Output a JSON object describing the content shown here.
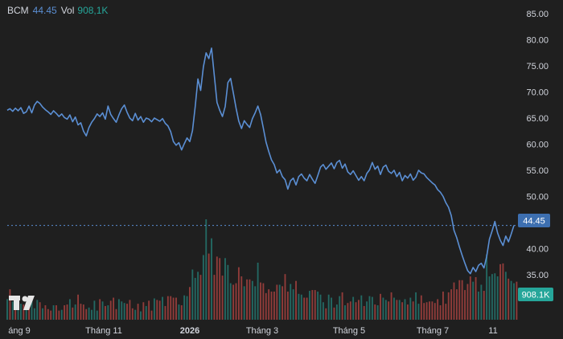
{
  "header": {
    "symbol": "BCM",
    "price": "44.45",
    "vol_label": "Vol",
    "volume": "908,1K"
  },
  "colors": {
    "background": "#1f1f1f",
    "line": "#5b8fd4",
    "up_volume": "#26a69a",
    "down_volume": "#ef5350",
    "price_badge": "#3d6fb0",
    "volume_badge": "#26a69a",
    "grid": "#2a2a2a"
  },
  "chart_data": {
    "type": "line",
    "symbol": "BCM",
    "y_ticks": [
      "85.00",
      "80.00",
      "75.00",
      "70.00",
      "65.00",
      "60.00",
      "55.00",
      "50.00",
      "45.00",
      "40.00",
      "35.00"
    ],
    "ylim": [
      35,
      85
    ],
    "x_tick_labels": [
      "áng 9",
      "Tháng 11",
      "2026",
      "Tháng 3",
      "Tháng 5",
      "Tháng 7",
      "11"
    ],
    "price_marker": "44.45",
    "volume_marker": "908.1K",
    "series": [
      {
        "values": [
          66.5,
          66.8,
          66.3,
          66.9,
          66.4,
          67.0,
          65.9,
          66.2,
          67.3,
          66.0,
          67.5,
          68.2,
          67.8,
          67.1,
          66.6,
          66.2,
          65.7,
          66.4,
          65.9,
          65.3,
          65.8,
          65.1,
          64.8,
          65.6,
          64.3,
          65.2,
          63.7,
          64.1,
          62.5,
          61.6,
          63.2,
          64.2,
          64.9,
          65.8,
          65.3,
          66.0,
          64.8,
          67.3,
          65.7,
          64.9,
          64.2,
          65.6,
          66.8,
          67.5,
          66.1,
          65.0,
          64.5,
          65.9,
          64.6,
          65.3,
          64.2,
          65.0,
          64.8,
          64.3,
          65.0,
          64.7,
          64.4,
          64.9,
          64.0,
          63.5,
          62.4,
          60.5,
          59.8,
          60.3,
          58.9,
          60.1,
          61.2,
          60.5,
          62.6,
          67.2,
          72.5,
          70.3,
          74.8,
          77.5,
          76.4,
          78.4,
          73.2,
          68.0,
          66.5,
          65.3,
          67.2,
          71.8,
          72.6,
          69.8,
          66.9,
          64.4,
          63.0,
          64.5,
          63.8,
          63.2,
          64.9,
          66.0,
          67.3,
          65.7,
          63.1,
          60.4,
          58.6,
          57.0,
          56.1,
          54.5,
          55.1,
          53.8,
          53.2,
          51.4,
          53.0,
          53.5,
          52.2,
          53.8,
          54.3,
          53.5,
          53.0,
          54.2,
          53.3,
          52.5,
          54.0,
          55.6,
          56.1,
          55.2,
          55.8,
          56.4,
          55.3,
          56.5,
          56.9,
          55.4,
          56.2,
          54.7,
          54.2,
          54.9,
          54.0,
          53.1,
          53.8,
          53.0,
          54.4,
          55.1,
          56.5,
          55.2,
          55.8,
          54.2,
          55.6,
          56.0,
          54.8,
          54.4,
          55.0,
          53.8,
          54.6,
          53.0,
          54.0,
          53.5,
          54.3,
          53.1,
          53.7,
          55.0,
          54.5,
          54.3,
          53.6,
          53.1,
          52.6,
          52.2,
          51.3,
          50.8,
          50.0,
          48.8,
          47.9,
          46.3,
          43.5,
          42.1,
          40.3,
          38.7,
          37.2,
          35.8,
          35.2,
          36.4,
          35.6,
          36.8,
          37.2,
          36.3,
          38.5,
          41.8,
          43.4,
          45.2,
          43.0,
          41.6,
          40.6,
          42.4,
          41.3,
          42.8,
          44.45
        ]
      }
    ],
    "volume_series": {
      "values": [
        0.27,
        0.4,
        0.24,
        0.31,
        0.28,
        0.21,
        0.2,
        0.18,
        0.22,
        0.26,
        0.15,
        0.26,
        0.23,
        0.15,
        0.19,
        0.14,
        0.12,
        0.19,
        0.19,
        0.12,
        0.13,
        0.19,
        0.2,
        0.27,
        0.16,
        0.2,
        0.33,
        0.21,
        0.2,
        0.14,
        0.16,
        0.13,
        0.25,
        0.12,
        0.27,
        0.24,
        0.18,
        0.19,
        0.25,
        0.29,
        0.14,
        0.27,
        0.24,
        0.22,
        0.21,
        0.26,
        0.15,
        0.13,
        0.21,
        0.11,
        0.23,
        0.18,
        0.25,
        0.12,
        0.28,
        0.26,
        0.25,
        0.3,
        0.18,
        0.31,
        0.31,
        0.29,
        0.29,
        0.2,
        0.19,
        0.32,
        0.31,
        0.43,
        0.66,
        0.55,
        0.63,
        0.59,
        0.85,
        1.32,
        0.87,
        1.07,
        0.59,
        0.83,
        0.81,
        0.58,
        0.81,
        0.72,
        0.48,
        0.46,
        0.48,
        0.69,
        0.57,
        0.44,
        0.53,
        0.53,
        0.51,
        0.44,
        0.75,
        0.49,
        0.48,
        0.35,
        0.4,
        0.37,
        0.37,
        0.46,
        0.46,
        0.44,
        0.6,
        0.37,
        0.47,
        0.4,
        0.51,
        0.34,
        0.33,
        0.29,
        0.29,
        0.38,
        0.39,
        0.39,
        0.37,
        0.33,
        0.23,
        0.15,
        0.33,
        0.29,
        0.16,
        0.2,
        0.31,
        0.36,
        0.19,
        0.22,
        0.24,
        0.3,
        0.23,
        0.26,
        0.32,
        0.18,
        0.24,
        0.31,
        0.3,
        0.2,
        0.19,
        0.34,
        0.29,
        0.26,
        0.24,
        0.36,
        0.29,
        0.26,
        0.26,
        0.23,
        0.27,
        0.2,
        0.29,
        0.24,
        0.36,
        0.21,
        0.32,
        0.22,
        0.23,
        0.24,
        0.24,
        0.22,
        0.27,
        0.19,
        0.37,
        0.21,
        0.36,
        0.4,
        0.49,
        0.4,
        0.52,
        0.52,
        0.39,
        0.47,
        0.57,
        0.5,
        0.56,
        0.37,
        0.46,
        0.38,
        0.86,
        0.57,
        0.6,
        0.61,
        0.57,
        0.73,
        0.74,
        0.63,
        0.54,
        0.51,
        0.48,
        0.5
      ],
      "up": [
        1,
        0,
        1,
        0,
        1,
        1,
        0,
        1,
        0,
        1,
        1,
        1,
        0,
        1,
        0,
        0,
        0,
        1,
        0,
        0,
        1,
        0,
        0,
        1,
        0,
        1,
        0,
        0,
        0,
        0,
        1,
        1,
        1,
        1,
        0,
        1,
        0,
        1,
        0,
        0,
        0,
        1,
        1,
        1,
        0,
        0,
        0,
        1,
        0,
        1,
        0,
        1,
        0,
        0,
        1,
        0,
        0,
        1,
        0,
        0,
        0,
        0,
        0,
        1,
        0,
        1,
        1,
        0,
        1,
        1,
        1,
        0,
        1,
        1,
        0,
        1,
        0,
        0,
        0,
        0,
        1,
        1,
        1,
        0,
        0,
        0,
        0,
        1,
        0,
        0,
        1,
        1,
        1,
        0,
        0,
        0,
        0,
        0,
        0,
        0,
        1,
        0,
        0,
        0,
        1,
        1,
        0,
        1,
        1,
        0,
        0,
        1,
        0,
        0,
        1,
        1,
        1,
        0,
        1,
        1,
        0,
        1,
        1,
        0,
        1,
        0,
        0,
        1,
        0,
        0,
        1,
        0,
        1,
        1,
        1,
        0,
        1,
        0,
        1,
        1,
        0,
        0,
        1,
        0,
        1,
        0,
        1,
        0,
        1,
        0,
        1,
        1,
        0,
        0,
        0,
        0,
        0,
        0,
        0,
        0,
        0,
        0,
        0,
        0,
        0,
        0,
        0,
        0,
        0,
        0,
        0,
        1,
        0,
        1,
        1,
        0,
        1,
        1,
        1,
        1,
        1,
        0,
        0,
        1,
        0,
        1,
        1
      ]
    }
  }
}
